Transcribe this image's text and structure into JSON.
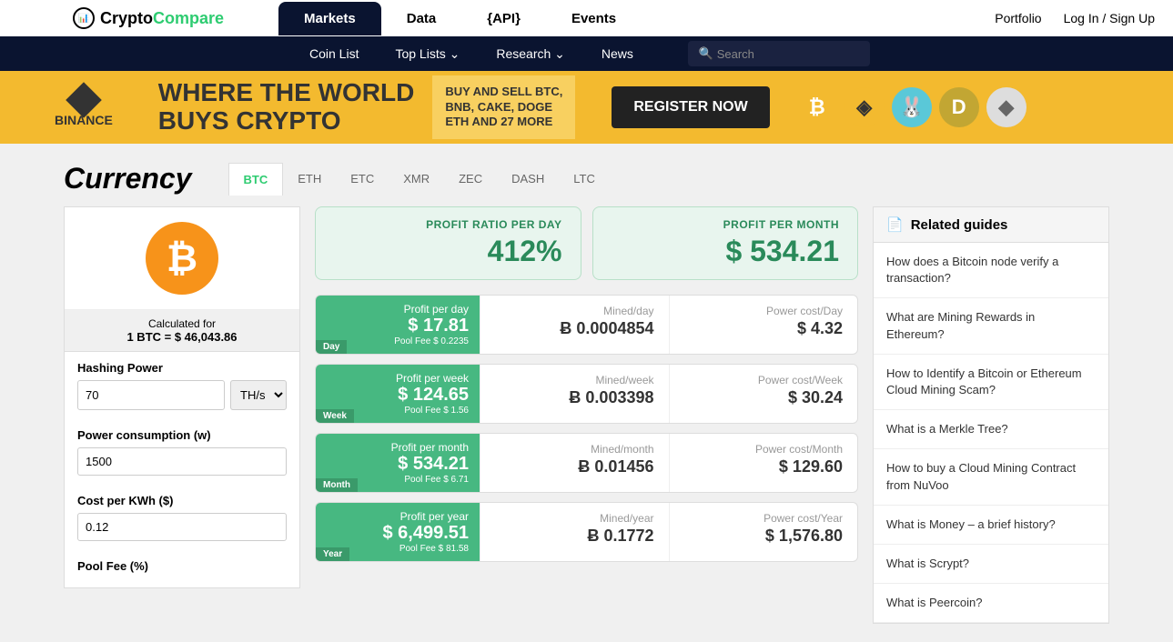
{
  "nav": {
    "logo_crypto": "Crypto",
    "logo_compare": "Compare",
    "items": [
      "Markets",
      "Data",
      "{API}",
      "Events"
    ],
    "right": [
      "Portfolio",
      "Log In / Sign Up"
    ]
  },
  "subnav": {
    "items": [
      "Coin List",
      "Top Lists ⌄",
      "Research ⌄",
      "News"
    ],
    "search_placeholder": "Search"
  },
  "banner": {
    "brand": "BINANCE",
    "headline1": "WHERE THE WORLD",
    "headline2": "BUYS CRYPTO",
    "sub1": "BUY AND SELL BTC,",
    "sub2": "BNB, CAKE, DOGE",
    "sub3": "ETH AND 27 MORE",
    "cta": "REGISTER NOW",
    "coins": [
      {
        "bg": "#f7931a",
        "char": "₿"
      },
      {
        "bg": "#f3ba2f",
        "char": "◈"
      },
      {
        "bg": "#5ac8d8",
        "char": "🐰"
      },
      {
        "bg": "#c2a633",
        "char": "D"
      },
      {
        "bg": "#ddd",
        "char": "◆"
      }
    ]
  },
  "page": {
    "title": "Currency",
    "tabs": [
      "BTC",
      "ETH",
      "ETC",
      "XMR",
      "ZEC",
      "DASH",
      "LTC"
    ],
    "active_tab": 0
  },
  "calc": {
    "calculated_for_label": "Calculated for",
    "calculated_for_value": "1 BTC = $ 46,043.86",
    "hashing_label": "Hashing Power",
    "hashing_value": "70",
    "hashing_unit": "TH/s",
    "power_label": "Power consumption (w)",
    "power_value": "1500",
    "cost_label": "Cost per KWh ($)",
    "cost_value": "0.12",
    "poolfee_label": "Pool Fee (%)"
  },
  "summary": {
    "ratio_label": "PROFIT RATIO PER DAY",
    "ratio_value": "412%",
    "month_label": "PROFIT PER MONTH",
    "month_value": "$ 534.21"
  },
  "periods": [
    {
      "badge": "Day",
      "profit_label": "Profit per day",
      "profit": "$ 17.81",
      "fee": "Pool Fee $ 0.2235",
      "mined_label": "Mined/day",
      "mined": "Ƀ 0.0004854",
      "power_label": "Power cost/Day",
      "power": "$ 4.32"
    },
    {
      "badge": "Week",
      "profit_label": "Profit per week",
      "profit": "$ 124.65",
      "fee": "Pool Fee $ 1.56",
      "mined_label": "Mined/week",
      "mined": "Ƀ 0.003398",
      "power_label": "Power cost/Week",
      "power": "$ 30.24"
    },
    {
      "badge": "Month",
      "profit_label": "Profit per month",
      "profit": "$ 534.21",
      "fee": "Pool Fee $ 6.71",
      "mined_label": "Mined/month",
      "mined": "Ƀ 0.01456",
      "power_label": "Power cost/Month",
      "power": "$ 129.60"
    },
    {
      "badge": "Year",
      "profit_label": "Profit per year",
      "profit": "$ 6,499.51",
      "fee": "Pool Fee $ 81.58",
      "mined_label": "Mined/year",
      "mined": "Ƀ 0.1772",
      "power_label": "Power cost/Year",
      "power": "$ 1,576.80"
    }
  ],
  "guides": {
    "header": "Related guides",
    "items": [
      "How does a Bitcoin node verify a transaction?",
      "What are Mining Rewards in Ethereum?",
      "How to Identify a Bitcoin or Ethereum Cloud Mining Scam?",
      "What is a Merkle Tree?",
      "How to buy a Cloud Mining Contract from NuVoo",
      "What is Money – a brief history?",
      "What is Scrypt?",
      "What is Peercoin?"
    ]
  }
}
